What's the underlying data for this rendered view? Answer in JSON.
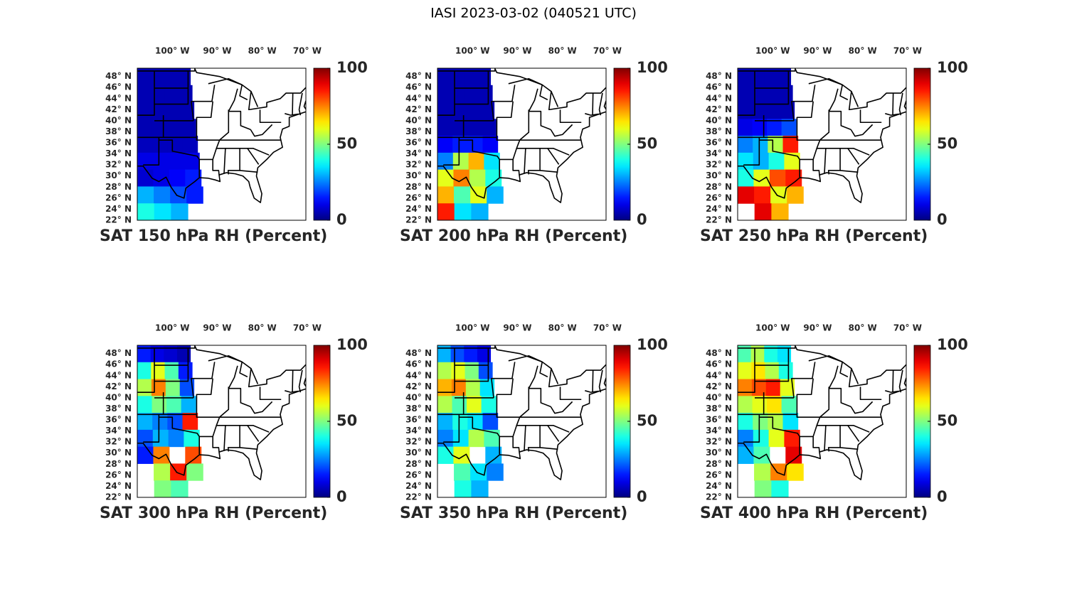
{
  "title": "IASI 2023-03-02 (040521 UTC)",
  "map": {
    "lon_ticks": [
      {
        "value": -100,
        "label": "100° W"
      },
      {
        "value": -90,
        "label": "90° W"
      },
      {
        "value": -80,
        "label": "80° W"
      },
      {
        "value": -70,
        "label": "70° W"
      }
    ],
    "lat_ticks": [
      {
        "value": 22,
        "label": "22° N"
      },
      {
        "value": 24,
        "label": "24° N"
      },
      {
        "value": 26,
        "label": "26° N"
      },
      {
        "value": 28,
        "label": "28° N"
      },
      {
        "value": 30,
        "label": "30° N"
      },
      {
        "value": 32,
        "label": "32° N"
      },
      {
        "value": 34,
        "label": "34° N"
      },
      {
        "value": 36,
        "label": "36° N"
      },
      {
        "value": 38,
        "label": "38° N"
      },
      {
        "value": 40,
        "label": "40° N"
      },
      {
        "value": 42,
        "label": "42° N"
      },
      {
        "value": 44,
        "label": "44° N"
      },
      {
        "value": 46,
        "label": "46° N"
      },
      {
        "value": 48,
        "label": "48° N"
      }
    ],
    "colorbar": {
      "colormap": "jet",
      "clim": [
        0,
        100
      ],
      "ticks": [
        0,
        50,
        100
      ]
    }
  },
  "panels": [
    {
      "title": "SAT 150 hPa RH (Percent)",
      "values": [
        [
          5,
          5,
          5,
          5
        ],
        [
          5,
          5,
          5,
          5
        ],
        [
          5,
          5,
          5,
          5
        ],
        [
          5,
          5,
          5,
          5
        ],
        [
          6,
          6,
          6,
          6
        ],
        [
          10,
          10,
          10,
          10
        ],
        [
          8,
          10,
          12,
          15
        ],
        [
          30,
          25,
          20,
          15
        ],
        [
          40,
          35,
          30,
          null
        ]
      ]
    },
    {
      "title": "SAT 200 hPa RH (Percent)",
      "values": [
        [
          5,
          5,
          5,
          5
        ],
        [
          5,
          5,
          5,
          5
        ],
        [
          5,
          5,
          5,
          5
        ],
        [
          5,
          5,
          5,
          5
        ],
        [
          12,
          15,
          15,
          12
        ],
        [
          25,
          55,
          70,
          35
        ],
        [
          60,
          75,
          55,
          40
        ],
        [
          70,
          45,
          60,
          30
        ],
        [
          85,
          35,
          30,
          null
        ]
      ]
    },
    {
      "title": "SAT 250 hPa RH (Percent)",
      "values": [
        [
          5,
          5,
          5,
          5
        ],
        [
          5,
          5,
          5,
          5
        ],
        [
          5,
          5,
          5,
          5
        ],
        [
          10,
          12,
          15,
          20
        ],
        [
          25,
          30,
          55,
          85
        ],
        [
          35,
          30,
          40,
          60
        ],
        [
          40,
          60,
          80,
          85
        ],
        [
          90,
          85,
          60,
          70
        ],
        [
          null,
          90,
          70,
          null
        ]
      ]
    },
    {
      "title": "SAT 300 hPa RH (Percent)",
      "values": [
        [
          15,
          10,
          8,
          5
        ],
        [
          40,
          60,
          45,
          15
        ],
        [
          55,
          75,
          50,
          20
        ],
        [
          40,
          50,
          45,
          30
        ],
        [
          30,
          25,
          20,
          85
        ],
        [
          20,
          30,
          25,
          40
        ],
        [
          15,
          75,
          null,
          80
        ],
        [
          null,
          55,
          85,
          50
        ],
        [
          null,
          50,
          45,
          null
        ]
      ]
    },
    {
      "title": "SAT 350 hPa RH (Percent)",
      "values": [
        [
          30,
          20,
          15,
          10
        ],
        [
          55,
          60,
          50,
          20
        ],
        [
          70,
          75,
          55,
          35
        ],
        [
          55,
          45,
          60,
          40
        ],
        [
          30,
          40,
          35,
          20
        ],
        [
          25,
          35,
          55,
          45
        ],
        [
          40,
          60,
          null,
          30
        ],
        [
          null,
          45,
          35,
          25
        ],
        [
          null,
          40,
          30,
          null
        ]
      ]
    },
    {
      "title": "SAT 400 hPa RH (Percent)",
      "values": [
        [
          45,
          55,
          40,
          35
        ],
        [
          60,
          65,
          55,
          40
        ],
        [
          75,
          80,
          85,
          60
        ],
        [
          55,
          60,
          65,
          45
        ],
        [
          40,
          50,
          55,
          35
        ],
        [
          25,
          40,
          60,
          85
        ],
        [
          30,
          45,
          null,
          90
        ],
        [
          null,
          55,
          75,
          65
        ],
        [
          null,
          50,
          40,
          null
        ]
      ]
    }
  ]
}
